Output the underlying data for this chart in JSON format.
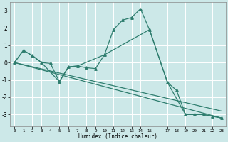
{
  "xlabel": "Humidex (Indice chaleur)",
  "ylabel": "",
  "bg_color": "#cce8e8",
  "grid_color": "#ffffff",
  "line_color": "#2e7d6e",
  "xlim": [
    -0.5,
    23.5
  ],
  "ylim": [
    -3.7,
    3.5
  ],
  "xticks": [
    0,
    1,
    2,
    3,
    4,
    5,
    6,
    7,
    8,
    9,
    10,
    11,
    12,
    13,
    14,
    15,
    17,
    18,
    19,
    20,
    21,
    22,
    23
  ],
  "yticks": [
    -3,
    -2,
    -1,
    0,
    1,
    2,
    3
  ],
  "lines": [
    {
      "x": [
        0,
        1,
        2,
        3,
        4,
        5,
        6,
        7,
        8,
        9,
        10,
        11,
        12,
        13,
        14,
        15,
        17,
        18,
        19,
        20,
        21,
        22,
        23
      ],
      "y": [
        0,
        0.7,
        0.4,
        0.0,
        -0.05,
        -1.1,
        -0.25,
        -0.2,
        -0.3,
        -0.35,
        0.45,
        1.9,
        2.45,
        2.6,
        3.1,
        1.9,
        -1.15,
        -1.6,
        -3.0,
        -3.0,
        -3.0,
        -3.1,
        -3.2
      ],
      "marker": "^",
      "markersize": 2.5,
      "lw": 0.9
    },
    {
      "x": [
        0,
        1,
        2,
        3,
        5,
        6,
        7,
        10,
        15,
        17,
        19,
        20,
        21,
        22,
        23
      ],
      "y": [
        0,
        0.7,
        0.4,
        0.0,
        -1.1,
        -0.25,
        -0.2,
        0.45,
        1.9,
        -1.15,
        -3.0,
        -3.0,
        -3.0,
        -3.1,
        -3.2
      ],
      "marker": null,
      "markersize": 0,
      "lw": 0.9
    },
    {
      "x": [
        0,
        23
      ],
      "y": [
        0,
        -3.2
      ],
      "marker": null,
      "markersize": 0,
      "lw": 0.9
    },
    {
      "x": [
        0,
        23
      ],
      "y": [
        0,
        -2.8
      ],
      "marker": null,
      "markersize": 0,
      "lw": 0.9
    }
  ]
}
